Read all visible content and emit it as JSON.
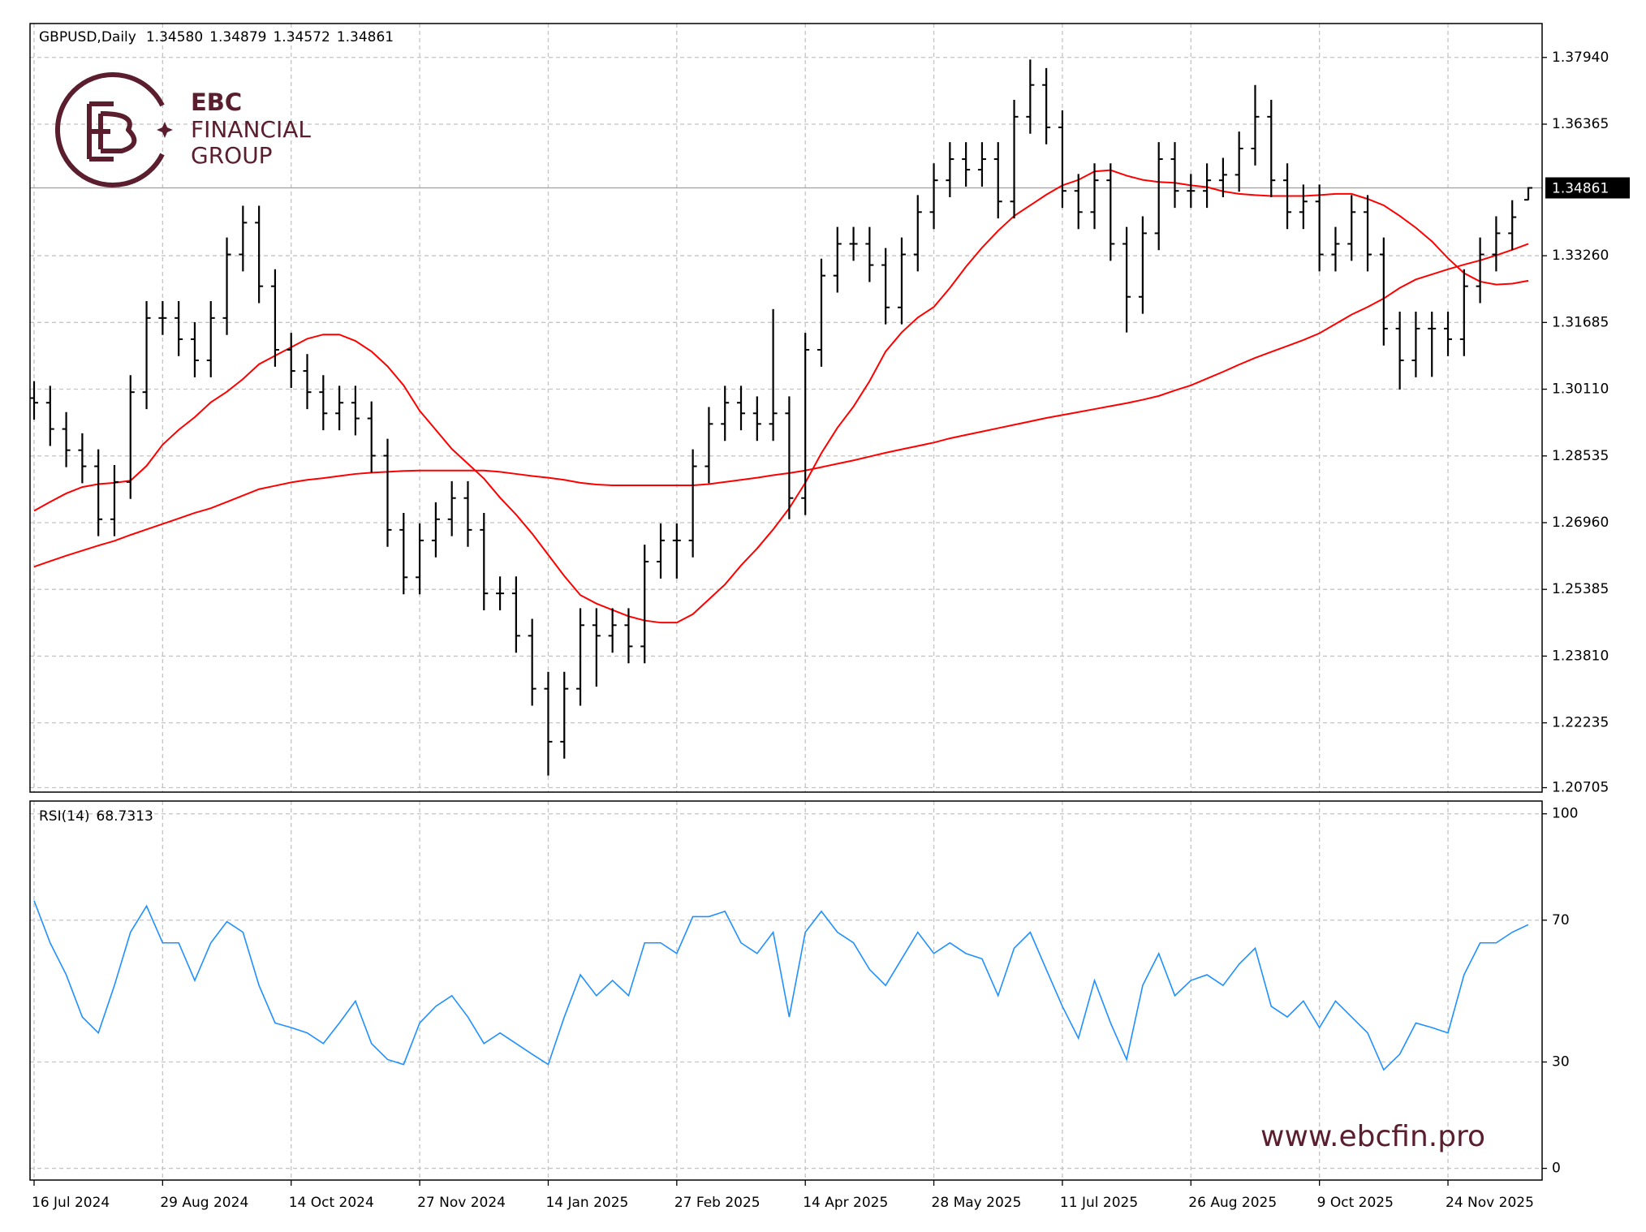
{
  "chart_data": [
    {
      "type": "ohlc",
      "header": {
        "symbol": "GBPUSD,Daily",
        "quote_labels": [
          "1.34580",
          "1.34879",
          "1.34572",
          "1.34861"
        ]
      },
      "bar_color": "#000000",
      "categories": [
        "16 Jul 2024",
        null,
        null,
        null,
        null,
        null,
        null,
        null,
        "29 Aug 2024",
        null,
        null,
        null,
        null,
        null,
        null,
        null,
        "14 Oct 2024",
        null,
        null,
        null,
        null,
        null,
        null,
        null,
        "27 Nov 2024",
        null,
        null,
        null,
        null,
        null,
        null,
        null,
        "14 Jan 2025",
        null,
        null,
        null,
        null,
        null,
        null,
        null,
        "27 Feb 2025",
        null,
        null,
        null,
        null,
        null,
        null,
        null,
        "14 Apr 2025",
        null,
        null,
        null,
        null,
        null,
        null,
        null,
        "28 May 2025",
        null,
        null,
        null,
        null,
        null,
        null,
        null,
        "11 Jul 2025",
        null,
        null,
        null,
        null,
        null,
        null,
        null,
        "26 Aug 2025",
        null,
        null,
        null,
        null,
        null,
        null,
        null,
        "9 Oct 2025",
        null,
        null,
        null,
        null,
        null,
        null,
        null,
        "24 Nov 2025",
        null,
        null,
        null,
        null,
        null
      ],
      "open": [
        1.299,
        1.2979,
        1.2917,
        1.2867,
        1.2829,
        1.2704,
        1.2792,
        1.3004,
        1.3179,
        1.3179,
        1.3129,
        1.3079,
        1.3179,
        1.3329,
        1.3404,
        1.3254,
        1.3104,
        1.3054,
        1.3004,
        1.2954,
        1.2979,
        1.2942,
        1.2854,
        1.2679,
        1.2567,
        1.2654,
        1.2704,
        1.2754,
        1.2679,
        1.2529,
        1.2529,
        1.2429,
        1.2304,
        1.2179,
        1.2304,
        1.2454,
        1.2429,
        1.2454,
        1.2404,
        1.2604,
        1.2654,
        1.2654,
        1.2829,
        1.2929,
        1.2979,
        1.2954,
        1.2929,
        1.2954,
        1.2754,
        1.3104,
        1.3279,
        1.3354,
        1.3354,
        1.3304,
        1.3204,
        1.3329,
        1.3429,
        1.3504,
        1.3554,
        1.3529,
        1.3554,
        1.3454,
        1.3654,
        1.3729,
        1.3629,
        1.3479,
        1.3429,
        1.3504,
        1.3354,
        1.3229,
        1.3379,
        1.3554,
        1.3479,
        1.3479,
        1.3504,
        1.3517,
        1.3579,
        1.3654,
        1.3504,
        1.3429,
        1.3454,
        1.3329,
        1.3354,
        1.3429,
        1.3329,
        1.3154,
        1.3079,
        1.3154,
        1.3154,
        1.3129,
        1.3254,
        1.3329,
        1.3379,
        1.3458
      ],
      "high": [
        1.303,
        1.3019,
        1.2957,
        1.2907,
        1.2869,
        1.2832,
        1.3044,
        1.3219,
        1.3219,
        1.3219,
        1.3169,
        1.3219,
        1.3369,
        1.3444,
        1.3444,
        1.3294,
        1.3144,
        1.3094,
        1.3044,
        1.3019,
        1.3019,
        1.2982,
        1.2894,
        1.2719,
        1.2694,
        1.2744,
        1.2794,
        1.2794,
        1.2719,
        1.2569,
        1.2569,
        1.2469,
        1.2344,
        1.2344,
        1.2494,
        1.2494,
        1.2494,
        1.2494,
        1.2644,
        1.2694,
        1.2694,
        1.2869,
        1.2969,
        1.3019,
        1.3019,
        1.2994,
        1.32,
        1.2994,
        1.3144,
        1.3319,
        1.3394,
        1.3394,
        1.3394,
        1.3344,
        1.3369,
        1.3469,
        1.3544,
        1.3594,
        1.3594,
        1.3594,
        1.3594,
        1.3694,
        1.3789,
        1.3769,
        1.3669,
        1.3519,
        1.3544,
        1.3544,
        1.3394,
        1.3419,
        1.3594,
        1.3594,
        1.3519,
        1.3544,
        1.3557,
        1.3619,
        1.3729,
        1.3694,
        1.3544,
        1.3494,
        1.3494,
        1.3394,
        1.3469,
        1.3469,
        1.3369,
        1.3194,
        1.3194,
        1.3194,
        1.3194,
        1.3294,
        1.3369,
        1.3419,
        1.3457,
        1.34879
      ],
      "low": [
        1.2939,
        1.2877,
        1.2827,
        1.2789,
        1.2664,
        1.2664,
        1.2752,
        1.2964,
        1.3139,
        1.3089,
        1.3039,
        1.3039,
        1.3139,
        1.3289,
        1.3214,
        1.3064,
        1.3014,
        1.2964,
        1.2914,
        1.2914,
        1.2902,
        1.2814,
        1.2639,
        1.2527,
        1.2527,
        1.2614,
        1.2664,
        1.2639,
        1.2489,
        1.2489,
        1.2389,
        1.2264,
        1.2099,
        1.2139,
        1.2264,
        1.2309,
        1.2389,
        1.2364,
        1.2364,
        1.2564,
        1.2564,
        1.2614,
        1.2789,
        1.2889,
        1.2914,
        1.2889,
        1.2889,
        1.2704,
        1.2714,
        1.3064,
        1.3239,
        1.3314,
        1.3264,
        1.3164,
        1.3164,
        1.3289,
        1.3389,
        1.3464,
        1.3489,
        1.3489,
        1.3414,
        1.3414,
        1.3614,
        1.3589,
        1.3439,
        1.3389,
        1.3389,
        1.3314,
        1.3145,
        1.3189,
        1.3339,
        1.3439,
        1.3439,
        1.3439,
        1.3464,
        1.3477,
        1.3539,
        1.3464,
        1.3389,
        1.3389,
        1.3289,
        1.3289,
        1.3314,
        1.3289,
        1.3114,
        1.301,
        1.3039,
        1.304,
        1.3089,
        1.3089,
        1.3214,
        1.3289,
        1.3339,
        1.34572
      ],
      "close": [
        1.2979,
        1.2917,
        1.2867,
        1.2829,
        1.2704,
        1.2792,
        1.3004,
        1.3179,
        1.3179,
        1.3129,
        1.3079,
        1.3179,
        1.3329,
        1.3404,
        1.3254,
        1.3104,
        1.3054,
        1.3004,
        1.2954,
        1.2979,
        1.2942,
        1.2854,
        1.2679,
        1.2567,
        1.2654,
        1.2704,
        1.2754,
        1.2679,
        1.2529,
        1.2529,
        1.2429,
        1.2304,
        1.2179,
        1.2304,
        1.2454,
        1.2429,
        1.2454,
        1.2404,
        1.2604,
        1.2654,
        1.2654,
        1.2829,
        1.2929,
        1.2979,
        1.2954,
        1.2929,
        1.2954,
        1.2754,
        1.3104,
        1.3279,
        1.3354,
        1.3354,
        1.3304,
        1.3204,
        1.3329,
        1.3429,
        1.3504,
        1.3554,
        1.3529,
        1.3554,
        1.3454,
        1.3654,
        1.3729,
        1.3629,
        1.3479,
        1.3429,
        1.3504,
        1.3354,
        1.3229,
        1.3379,
        1.3554,
        1.3479,
        1.3479,
        1.3504,
        1.3517,
        1.3579,
        1.3654,
        1.3504,
        1.3429,
        1.3454,
        1.3329,
        1.3354,
        1.3429,
        1.3329,
        1.3154,
        1.3079,
        1.3154,
        1.3154,
        1.3129,
        1.3254,
        1.3329,
        1.3379,
        1.3417,
        1.34861
      ],
      "series": [
        {
          "color": "#ff0000",
          "values": [
            1.2724,
            1.2745,
            1.2765,
            1.278,
            1.2787,
            1.279,
            1.2795,
            1.283,
            1.288,
            1.2915,
            1.2945,
            1.298,
            1.3005,
            1.3035,
            1.307,
            1.309,
            1.311,
            1.313,
            1.314,
            1.314,
            1.3125,
            1.31,
            1.3065,
            1.302,
            1.296,
            1.2915,
            1.287,
            1.2835,
            1.28,
            1.2755,
            1.2715,
            1.267,
            1.262,
            1.257,
            1.2525,
            1.2505,
            1.249,
            1.2475,
            1.2465,
            1.246,
            1.246,
            1.248,
            1.2515,
            1.255,
            1.2595,
            1.2635,
            1.268,
            1.273,
            1.279,
            1.286,
            1.292,
            1.297,
            1.303,
            1.31,
            1.3145,
            1.318,
            1.3205,
            1.325,
            1.33,
            1.3345,
            1.3385,
            1.342,
            1.3445,
            1.347,
            1.3492,
            1.3505,
            1.3525,
            1.3528,
            1.3515,
            1.3505,
            1.35,
            1.3498,
            1.3492,
            1.3488,
            1.3478,
            1.3472,
            1.3469,
            1.3467,
            1.3467,
            1.3467,
            1.3469,
            1.3472,
            1.3472,
            1.346,
            1.3445,
            1.342,
            1.3392,
            1.336,
            1.332,
            1.3285,
            1.3265,
            1.3258,
            1.326,
            1.3267
          ]
        },
        {
          "color": "#ff0000",
          "values": [
            1.2592,
            1.2605,
            1.2618,
            1.263,
            1.2642,
            1.2653,
            1.2667,
            1.268,
            1.2693,
            1.2706,
            1.2719,
            1.273,
            1.2745,
            1.276,
            1.2775,
            1.2783,
            1.2791,
            1.2797,
            1.2801,
            1.2806,
            1.2811,
            1.2814,
            1.2816,
            1.2818,
            1.2819,
            1.2819,
            1.2819,
            1.2819,
            1.2819,
            1.2816,
            1.2811,
            1.2806,
            1.2802,
            1.2797,
            1.279,
            1.2786,
            1.2784,
            1.2784,
            1.2784,
            1.2784,
            1.2784,
            1.2784,
            1.2787,
            1.2792,
            1.2797,
            1.2802,
            1.2808,
            1.2813,
            1.2819,
            1.2827,
            1.2835,
            1.2843,
            1.2852,
            1.2861,
            1.2869,
            1.2877,
            1.2885,
            1.2895,
            1.2903,
            1.2911,
            1.2919,
            1.2927,
            1.2935,
            1.2943,
            1.295,
            1.2957,
            1.2964,
            1.2971,
            1.2978,
            1.2986,
            1.2995,
            1.3008,
            1.302,
            1.3036,
            1.3052,
            1.3069,
            1.3085,
            1.3099,
            1.3113,
            1.3127,
            1.3143,
            1.3165,
            1.3187,
            1.3205,
            1.3225,
            1.325,
            1.327,
            1.3282,
            1.3294,
            1.3305,
            1.3315,
            1.3327,
            1.334,
            1.3354
          ]
        }
      ],
      "ylim": [
        1.206,
        1.3874
      ],
      "yticks": [
        {
          "value": 1.3794,
          "label": "1.37940"
        },
        1.36365,
        {
          "value": 1.3326,
          "label": "1.33260"
        },
        1.31685,
        {
          "value": 1.3011,
          "label": "1.30110"
        },
        1.28535,
        {
          "value": 1.2696,
          "label": "1.26960"
        },
        1.25385,
        {
          "value": 1.2381,
          "label": "1.23810"
        },
        1.22235,
        1.20705
      ],
      "last_price": {
        "value": 1.34861,
        "label": "1.34861"
      },
      "grid": true
    },
    {
      "type": "line",
      "name": "RSI(14)",
      "color": "#1e90ff",
      "values": [
        75.5,
        63.6,
        54.6,
        42.7,
        38.2,
        51.6,
        66.6,
        74.0,
        63.6,
        63.6,
        53.0,
        63.6,
        69.6,
        66.6,
        51.6,
        41.0,
        39.7,
        38.2,
        35.2,
        41.0,
        47.2,
        35.2,
        30.7,
        29.3,
        41.0,
        45.7,
        48.7,
        42.7,
        35.2,
        38.2,
        35.2,
        32.2,
        29.3,
        42.7,
        54.6,
        48.7,
        53.0,
        48.7,
        63.6,
        63.6,
        60.6,
        71.0,
        71.0,
        72.5,
        63.6,
        60.6,
        66.6,
        42.7,
        66.6,
        72.5,
        66.6,
        63.6,
        56.1,
        51.6,
        59.1,
        66.6,
        60.6,
        63.6,
        60.6,
        59.1,
        48.7,
        62.1,
        66.6,
        56.1,
        45.7,
        36.7,
        53.0,
        41.0,
        30.7,
        51.6,
        60.6,
        48.7,
        53.0,
        54.6,
        51.6,
        57.6,
        62.1,
        45.7,
        42.7,
        47.2,
        39.7,
        47.2,
        42.7,
        38.2,
        27.8,
        32.2,
        41.0,
        39.7,
        38.2,
        54.6,
        63.6,
        63.6,
        66.6,
        68.7313
      ],
      "ylim": [
        -3.3,
        103.6
      ],
      "yticks": [
        100,
        70,
        30,
        0
      ],
      "grid": true
    }
  ],
  "branding": {
    "logo_top": "EBC",
    "logo_middle": "FINANCIAL",
    "logo_bottom": "GROUP",
    "website": "www.ebcfin.pro"
  }
}
